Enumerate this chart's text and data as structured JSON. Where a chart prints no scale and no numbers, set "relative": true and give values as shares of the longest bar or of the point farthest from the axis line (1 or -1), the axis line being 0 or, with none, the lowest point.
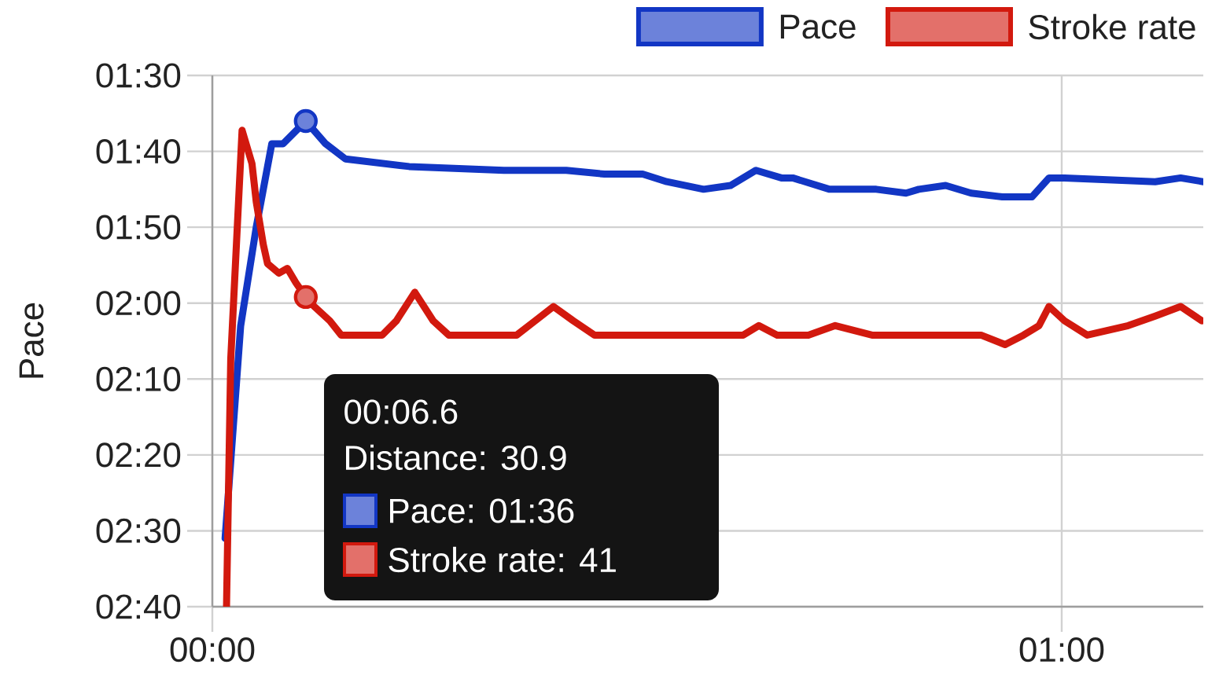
{
  "chart_data": [
    {
      "type": "line",
      "ylabel": "Pace",
      "xlim": [
        0,
        70
      ],
      "xticks": [
        {
          "value": 0,
          "label": "00:00"
        },
        {
          "value": 60,
          "label": "01:00"
        }
      ],
      "ylim": [
        160,
        90
      ],
      "yticks": [
        {
          "value": 90,
          "label": "01:30"
        },
        {
          "value": 100,
          "label": "01:40"
        },
        {
          "value": 110,
          "label": "01:50"
        },
        {
          "value": 120,
          "label": "02:00"
        },
        {
          "value": 130,
          "label": "02:10"
        },
        {
          "value": 140,
          "label": "02:20"
        },
        {
          "value": 150,
          "label": "02:30"
        },
        {
          "value": 160,
          "label": "02:40"
        }
      ],
      "grid": true,
      "legend": "top right",
      "series": [
        {
          "name": "Pace",
          "color": "#1236c4",
          "x": [
            0.9,
            2.0,
            3.1,
            4.2,
            5.0,
            6.6,
            8.0,
            9.4,
            13.9,
            20.6,
            25.0,
            27.7,
            30.4,
            32.1,
            34.7,
            36.6,
            38.4,
            40.2,
            41.0,
            43.6,
            46.9,
            49.0,
            49.9,
            51.8,
            53.6,
            55.8,
            57.9,
            59.1,
            60.2,
            66.6,
            68.4,
            70.0
          ],
          "values": [
            151,
            123,
            110,
            99,
            99,
            96,
            99,
            101,
            102,
            102.5,
            102.5,
            103,
            103,
            104,
            105,
            104.5,
            102.5,
            103.5,
            103.5,
            105,
            105,
            105.5,
            105,
            104.5,
            105.5,
            106,
            106,
            103.5,
            103.5,
            104,
            103.5,
            104
          ]
        },
        {
          "type": "scatter",
          "marker": "circle",
          "color": "#1236c4",
          "x": [
            6.6
          ],
          "values": [
            96
          ]
        }
      ],
      "annotations": [
        "00:06.6",
        "Distance: 30.9",
        "Pace: 01:36",
        "Stroke rate: 41"
      ]
    },
    {
      "type": "line",
      "relative": true,
      "xlim": [
        0,
        70
      ],
      "tick_labels": false,
      "legend": "top right",
      "series": [
        {
          "name": "Stroke rate",
          "color": "#d2190e",
          "x": [
            1.0,
            1.3,
            2.1,
            2.8,
            3.1,
            3.6,
            3.9,
            4.7,
            5.3,
            5.9,
            6.6,
            7.2,
            8.3,
            9.1,
            12.0,
            13.0,
            14.3,
            15.6,
            16.7,
            21.5,
            22.8,
            24.1,
            25.5,
            27.0,
            37.5,
            38.6,
            39.9,
            42.1,
            44.0,
            46.6,
            54.3,
            56.0,
            57.3,
            58.4,
            59.1,
            60.2,
            61.8,
            64.7,
            66.6,
            68.4,
            69.9
          ],
          "values": [
            0,
            0.52,
            1,
            0.93,
            0.85,
            0.76,
            0.72,
            0.7,
            0.71,
            0.68,
            0.65,
            0.63,
            0.6,
            0.57,
            0.57,
            0.6,
            0.66,
            0.6,
            0.57,
            0.57,
            0.6,
            0.63,
            0.6,
            0.57,
            0.57,
            0.59,
            0.57,
            0.57,
            0.59,
            0.57,
            0.57,
            0.55,
            0.57,
            0.59,
            0.63,
            0.6,
            0.57,
            0.59,
            0.61,
            0.63,
            0.6
          ]
        },
        {
          "type": "scatter",
          "marker": "circle",
          "color": "#d2190e",
          "x": [
            6.6
          ],
          "values": [
            0.65
          ]
        }
      ]
    }
  ]
}
